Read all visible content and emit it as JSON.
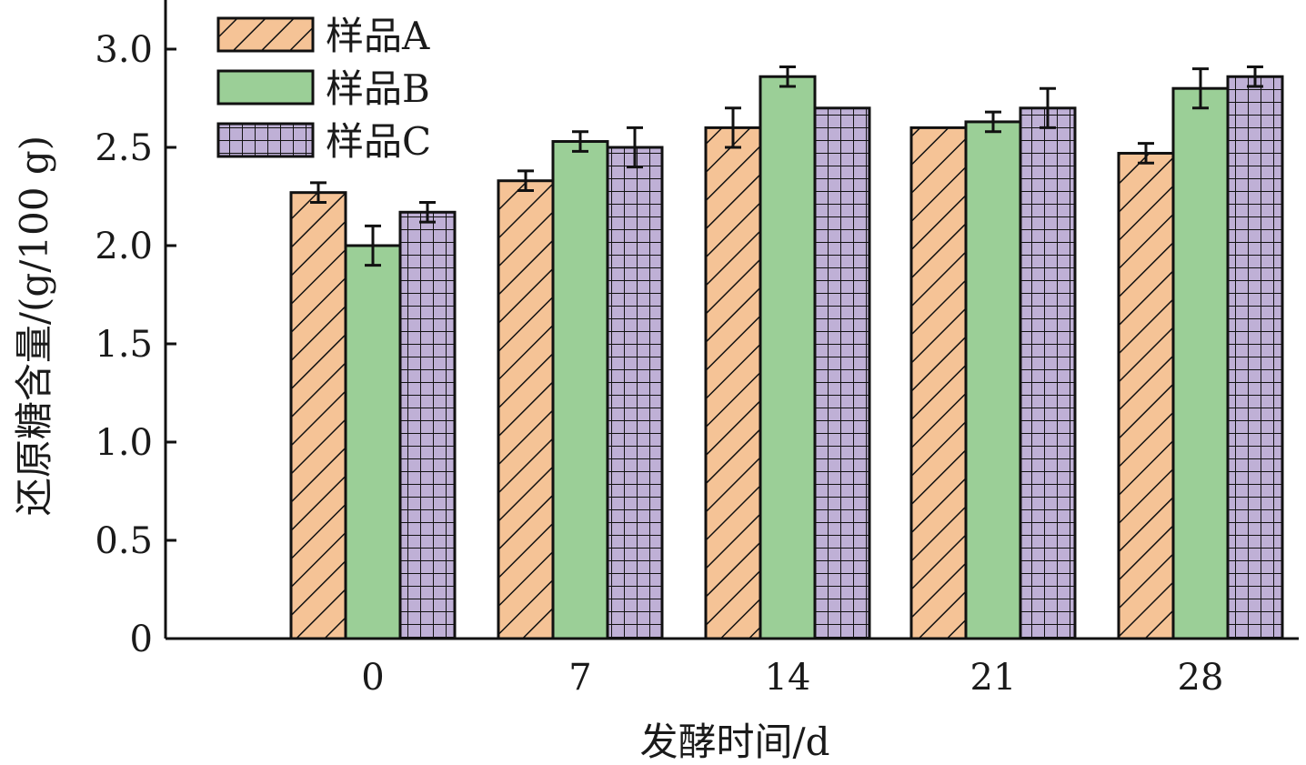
{
  "chart_data": {
    "type": "bar",
    "xlabel": "发酵时间/d",
    "ylabel": "还原糖含量/(g/100 g)",
    "categories": [
      "0",
      "7",
      "14",
      "21",
      "28"
    ],
    "ylim": [
      0,
      3.0
    ],
    "yticks": [
      0,
      0.5,
      1.0,
      1.5,
      2.0,
      2.5,
      3.0
    ],
    "ytick_labels": [
      "0",
      "0.5",
      "1.0",
      "1.5",
      "2.0",
      "2.5",
      "3.0"
    ],
    "grid": false,
    "legend_position": "top-left",
    "series": [
      {
        "name": "样品A",
        "color": "#f5c396",
        "pattern": "diagonal-hatch",
        "values": [
          2.27,
          2.33,
          2.6,
          2.6,
          2.47
        ],
        "errors": [
          0.05,
          0.05,
          0.1,
          0.0,
          0.05
        ]
      },
      {
        "name": "样品B",
        "color": "#9bcf97",
        "pattern": "solid",
        "values": [
          2.0,
          2.53,
          2.86,
          2.63,
          2.8
        ],
        "errors": [
          0.1,
          0.05,
          0.05,
          0.05,
          0.1
        ]
      },
      {
        "name": "样品C",
        "color": "#bfb0d6",
        "pattern": "grid",
        "values": [
          2.17,
          2.5,
          2.7,
          2.7,
          2.86
        ],
        "errors": [
          0.05,
          0.1,
          0.0,
          0.1,
          0.05
        ]
      }
    ]
  }
}
